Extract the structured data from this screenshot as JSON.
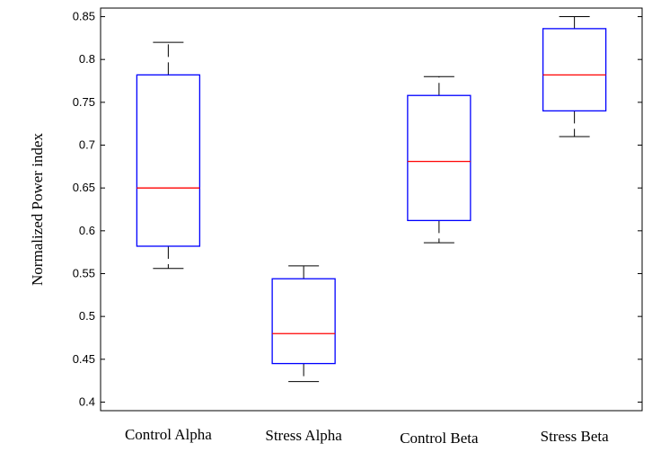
{
  "chart_data": {
    "type": "boxplot",
    "ylabel": "Normalized Power index",
    "xlabel": "",
    "ylim": [
      0.39,
      0.86
    ],
    "yticks": [
      0.4,
      0.45,
      0.5,
      0.55,
      0.6,
      0.65,
      0.7,
      0.75,
      0.8,
      0.85
    ],
    "ytick_labels": [
      "0.4",
      "0.45",
      "0.5",
      "0.55",
      "0.6",
      "0.65",
      "0.7",
      "0.75",
      "0.8",
      "0.85"
    ],
    "categories": [
      "Control Alpha",
      "Stress Alpha",
      "Control Beta",
      "Stress Beta"
    ],
    "boxes": [
      {
        "category": "Control Alpha",
        "whisker_low": 0.556,
        "q1": 0.582,
        "median": 0.65,
        "q3": 0.782,
        "whisker_high": 0.82
      },
      {
        "category": "Stress Alpha",
        "whisker_low": 0.424,
        "q1": 0.445,
        "median": 0.48,
        "q3": 0.544,
        "whisker_high": 0.559
      },
      {
        "category": "Control Beta",
        "whisker_low": 0.586,
        "q1": 0.612,
        "median": 0.681,
        "q3": 0.758,
        "whisker_high": 0.78
      },
      {
        "category": "Stress Beta",
        "whisker_low": 0.71,
        "q1": 0.74,
        "median": 0.782,
        "q3": 0.836,
        "whisker_high": 0.85
      }
    ],
    "colors": {
      "box": "#0000ff",
      "median": "#ff0000",
      "whisker": "#000000"
    },
    "grid": false
  }
}
